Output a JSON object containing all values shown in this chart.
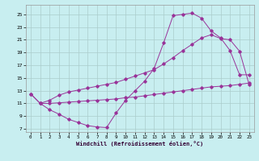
{
  "title": "",
  "xlabel": "Windchill (Refroidissement éolien,°C)",
  "bg_color": "#c8eef0",
  "line_color": "#993399",
  "grid_color": "#aacccc",
  "xlim": [
    -0.5,
    23.5
  ],
  "ylim": [
    6.5,
    26.5
  ],
  "xticks": [
    0,
    1,
    2,
    3,
    4,
    5,
    6,
    7,
    8,
    9,
    10,
    11,
    12,
    13,
    14,
    15,
    16,
    17,
    18,
    19,
    20,
    21,
    22,
    23
  ],
  "yticks": [
    7,
    9,
    11,
    13,
    15,
    17,
    19,
    21,
    23,
    25
  ],
  "line1_x": [
    0,
    1,
    2,
    3,
    4,
    5,
    6,
    7,
    8,
    9,
    10,
    11,
    12,
    13,
    14,
    15,
    16,
    17,
    18,
    19,
    20,
    21,
    22,
    23
  ],
  "line1_y": [
    12.5,
    11.0,
    10.0,
    9.3,
    8.5,
    8.0,
    7.5,
    7.3,
    7.2,
    9.5,
    11.5,
    13.0,
    14.5,
    16.5,
    20.5,
    24.8,
    25.0,
    25.2,
    24.4,
    22.4,
    21.3,
    19.3,
    15.5,
    15.5
  ],
  "line2_x": [
    0,
    1,
    2,
    3,
    4,
    5,
    6,
    7,
    8,
    9,
    10,
    11,
    12,
    13,
    14,
    15,
    16,
    17,
    18,
    19,
    20,
    21,
    22,
    23
  ],
  "line2_y": [
    12.5,
    11.0,
    11.5,
    12.3,
    12.8,
    13.1,
    13.4,
    13.7,
    14.0,
    14.3,
    14.8,
    15.3,
    15.8,
    16.3,
    17.2,
    18.2,
    19.3,
    20.3,
    21.3,
    21.8,
    21.2,
    21.0,
    19.2,
    14.0
  ],
  "line3_x": [
    1,
    2,
    3,
    4,
    5,
    6,
    7,
    8,
    9,
    10,
    11,
    12,
    13,
    14,
    15,
    16,
    17,
    18,
    19,
    20,
    21,
    22,
    23
  ],
  "line3_y": [
    11.0,
    11.0,
    11.1,
    11.2,
    11.3,
    11.4,
    11.5,
    11.6,
    11.7,
    11.9,
    12.0,
    12.2,
    12.4,
    12.6,
    12.8,
    13.0,
    13.2,
    13.4,
    13.6,
    13.7,
    13.8,
    14.0,
    14.2
  ]
}
